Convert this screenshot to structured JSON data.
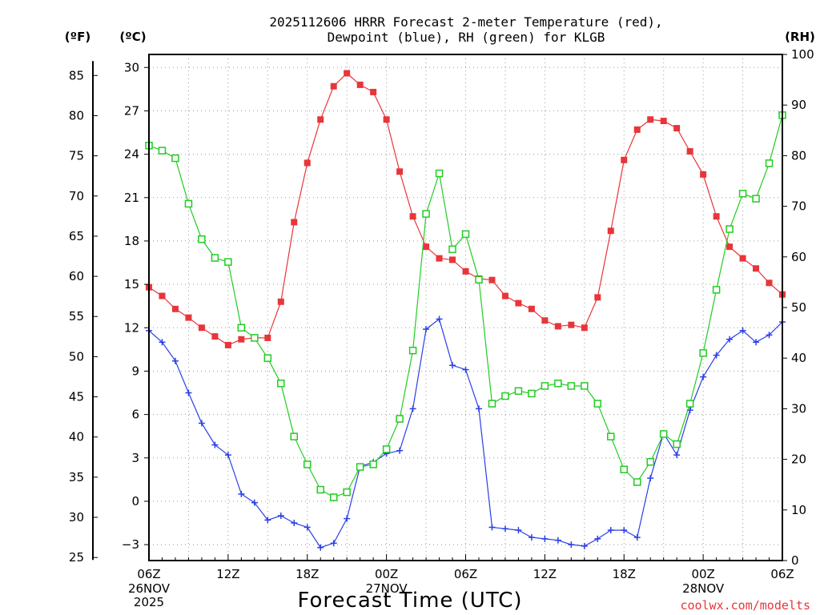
{
  "chart_data": {
    "type": "line",
    "title_line1": "2025112606 HRRR Forecast 2-meter Temperature (red),",
    "title_line2": "Dewpoint (blue), RH (green) for KLGB",
    "xlabel": "Forecast Time (UTC)",
    "credit": "coolwx.com/modelts",
    "unit_f": "(ºF)",
    "unit_c": "(ºC)",
    "unit_rh": "(RH)",
    "xlim": [
      0,
      48
    ],
    "ylim_c": [
      -4.1,
      30.9
    ],
    "ylim_rh": [
      0,
      100
    ],
    "x_ticks": [
      {
        "x": 0,
        "label": "06Z"
      },
      {
        "x": 6,
        "label": "12Z"
      },
      {
        "x": 12,
        "label": "18Z"
      },
      {
        "x": 18,
        "label": "00Z"
      },
      {
        "x": 24,
        "label": "06Z"
      },
      {
        "x": 30,
        "label": "12Z"
      },
      {
        "x": 36,
        "label": "18Z"
      },
      {
        "x": 42,
        "label": "00Z"
      },
      {
        "x": 48,
        "label": "06Z"
      }
    ],
    "date_labels": [
      {
        "x": 0,
        "line1": "26NOV",
        "line2": "2025"
      },
      {
        "x": 18,
        "line1": "27NOV",
        "line2": ""
      },
      {
        "x": 42,
        "line1": "28NOV",
        "line2": ""
      }
    ],
    "c_ticks": [
      -3,
      0,
      3,
      6,
      9,
      12,
      15,
      18,
      21,
      24,
      27,
      30
    ],
    "f_ticks": [
      25,
      30,
      35,
      40,
      45,
      50,
      55,
      60,
      65,
      70,
      75,
      80,
      85
    ],
    "rh_ticks": [
      0,
      10,
      20,
      30,
      40,
      50,
      60,
      70,
      80,
      90,
      100
    ],
    "series": [
      {
        "name": "Temperature",
        "units": "C",
        "color": "#e8353a",
        "marker": "filled-square",
        "values": [
          14.8,
          14.2,
          13.3,
          12.7,
          12.0,
          11.4,
          10.8,
          11.2,
          11.3,
          11.3,
          13.8,
          19.3,
          23.4,
          26.4,
          28.7,
          29.6,
          28.8,
          28.3,
          26.4,
          22.8,
          19.7,
          17.6,
          16.8,
          16.7,
          15.9,
          15.4,
          15.3,
          14.2,
          13.7,
          13.3,
          12.5,
          12.1,
          12.2,
          12.0,
          14.1,
          18.7,
          23.6,
          25.7,
          26.4,
          26.3,
          25.8,
          24.2,
          22.6,
          19.7,
          17.6,
          16.8,
          16.1,
          15.1,
          14.3
        ]
      },
      {
        "name": "Dewpoint",
        "units": "C",
        "color": "#2a3fe6",
        "marker": "plus",
        "values": [
          11.8,
          11.0,
          9.7,
          7.5,
          5.4,
          3.9,
          3.2,
          0.5,
          -0.1,
          -1.3,
          -1.0,
          -1.5,
          -1.8,
          -3.2,
          -2.9,
          -1.2,
          2.4,
          2.7,
          3.3,
          3.5,
          6.4,
          11.9,
          12.6,
          9.4,
          9.1,
          6.4,
          -1.8,
          -1.9,
          -2.0,
          -2.5,
          -2.6,
          -2.7,
          -3.0,
          -3.1,
          -2.6,
          -2.0,
          -2.0,
          -2.5,
          1.6,
          4.7,
          3.2,
          6.3,
          8.6,
          10.1,
          11.2,
          11.8,
          11.0,
          11.5,
          12.4
        ]
      },
      {
        "name": "RH",
        "units": "%",
        "color": "#22cc22",
        "marker": "open-square",
        "values": [
          82.0,
          81.0,
          79.5,
          70.5,
          63.5,
          59.8,
          59.0,
          46.0,
          44.0,
          40.0,
          35.0,
          24.5,
          19.0,
          14.0,
          12.5,
          13.5,
          18.5,
          19.0,
          22.0,
          28.0,
          41.5,
          68.5,
          76.5,
          61.5,
          64.5,
          55.5,
          31.0,
          32.5,
          33.5,
          33.0,
          34.5,
          35.0,
          34.5,
          34.5,
          31.0,
          24.5,
          18.0,
          15.5,
          19.5,
          25.0,
          23.0,
          31.0,
          41.0,
          53.5,
          65.5,
          72.5,
          71.5,
          78.5,
          88.0
        ]
      }
    ]
  }
}
